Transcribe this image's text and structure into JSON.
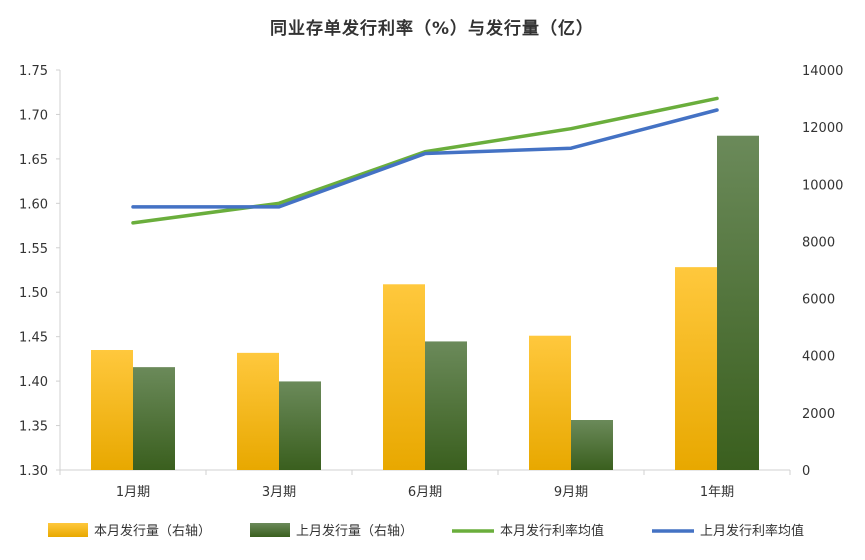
{
  "chart_data": {
    "type": "bar",
    "title": "同业存单发行利率（%）与发行量（亿）",
    "categories": [
      "1月期",
      "3月期",
      "6月期",
      "9月期",
      "1年期"
    ],
    "y_left": {
      "min": 1.3,
      "max": 1.75,
      "step": 0.05,
      "ticks": [
        "1.30",
        "1.35",
        "1.40",
        "1.45",
        "1.50",
        "1.55",
        "1.60",
        "1.65",
        "1.70",
        "1.75"
      ]
    },
    "y_right": {
      "min": 0,
      "max": 14000,
      "step": 2000,
      "ticks": [
        "0",
        "2000",
        "4000",
        "6000",
        "8000",
        "10000",
        "12000",
        "14000"
      ]
    },
    "bar_series": [
      {
        "name": "本月发行量（右轴）",
        "axis": "right",
        "color_top": "#FFC83D",
        "color_bottom": "#E8A800",
        "values": [
          4200,
          4100,
          6500,
          4700,
          7100
        ]
      },
      {
        "name": "上月发行量（右轴）",
        "axis": "right",
        "color_top": "#6B8A5A",
        "color_bottom": "#3A5F1E",
        "values": [
          3600,
          3100,
          4500,
          1750,
          11700
        ]
      }
    ],
    "line_series": [
      {
        "name": "本月发行利率均值",
        "axis": "left",
        "color": "#6AAE3C",
        "values": [
          1.578,
          1.6,
          1.658,
          1.684,
          1.718
        ]
      },
      {
        "name": "上月发行利率均值",
        "axis": "left",
        "color": "#4472C4",
        "values": [
          1.596,
          1.596,
          1.656,
          1.662,
          1.705
        ]
      }
    ],
    "legend_position": "bottom",
    "grid": false
  }
}
